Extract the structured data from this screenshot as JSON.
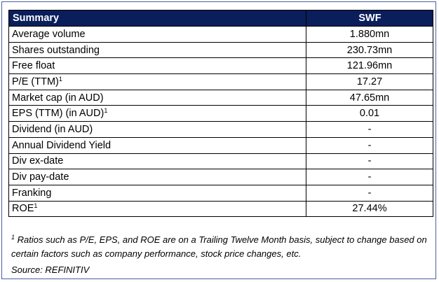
{
  "table": {
    "header": {
      "label": "Summary",
      "ticker": "SWF"
    },
    "rows": [
      {
        "label": "Average volume",
        "sup": "",
        "value": "1.880mn"
      },
      {
        "label": "Shares outstanding",
        "sup": "",
        "value": "230.73mn"
      },
      {
        "label": "Free float",
        "sup": "",
        "value": "121.96mn"
      },
      {
        "label": "P/E (TTM)",
        "sup": "1",
        "value": "17.27"
      },
      {
        "label": "Market cap (in AUD)",
        "sup": "",
        "value": "47.65mn"
      },
      {
        "label": "EPS (TTM) (in AUD)",
        "sup": "1",
        "value": "0.01"
      },
      {
        "label": "Dividend (in AUD)",
        "sup": "",
        "value": "-"
      },
      {
        "label": "Annual Dividend Yield",
        "sup": "",
        "value": "-"
      },
      {
        "label": "Div ex-date",
        "sup": "",
        "value": "-"
      },
      {
        "label": "Div pay-date",
        "sup": "",
        "value": "-"
      },
      {
        "label": "Franking",
        "sup": "",
        "value": "-"
      },
      {
        "label": "ROE",
        "sup": "1",
        "value": "27.44%"
      }
    ]
  },
  "footnote": {
    "marker": "1",
    "text": " Ratios such as P/E, EPS, and ROE are on a Trailing Twelve Month basis, subject to change based on certain factors such as company performance, stock price changes, etc."
  },
  "source": "Source: REFINITIV",
  "colors": {
    "header_bg": "#0b1e5c",
    "header_text": "#ffffff",
    "frame": "#4a5fa0"
  }
}
